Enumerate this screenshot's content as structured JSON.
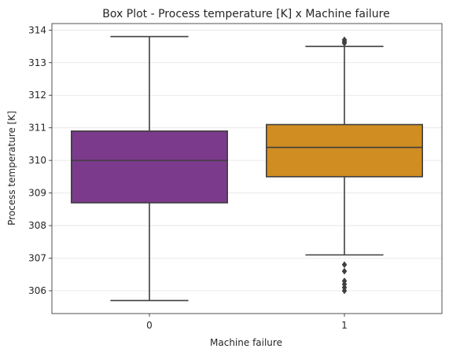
{
  "chart_data": {
    "type": "box",
    "title": "Box Plot - Process temperature [K] x Machine failure",
    "xlabel": "Machine failure",
    "ylabel": "Process temperature [K]",
    "categories": [
      "0",
      "1"
    ],
    "ylim": [
      305.3,
      314.2
    ],
    "yticks": [
      306,
      307,
      308,
      309,
      310,
      311,
      312,
      313,
      314
    ],
    "grid": "horizontal",
    "boxes": [
      {
        "category": "0",
        "whisker_low": 305.7,
        "q1": 308.7,
        "median": 310.0,
        "q3": 310.9,
        "whisker_high": 313.8,
        "outliers": [],
        "color": "#7b3a8c"
      },
      {
        "category": "1",
        "whisker_low": 307.1,
        "q1": 309.5,
        "median": 310.4,
        "q3": 311.1,
        "whisker_high": 313.5,
        "outliers": [
          306.0,
          306.1,
          306.2,
          306.3,
          306.6,
          306.8,
          313.6,
          313.65,
          313.7
        ],
        "color": "#cf8d22"
      }
    ]
  }
}
